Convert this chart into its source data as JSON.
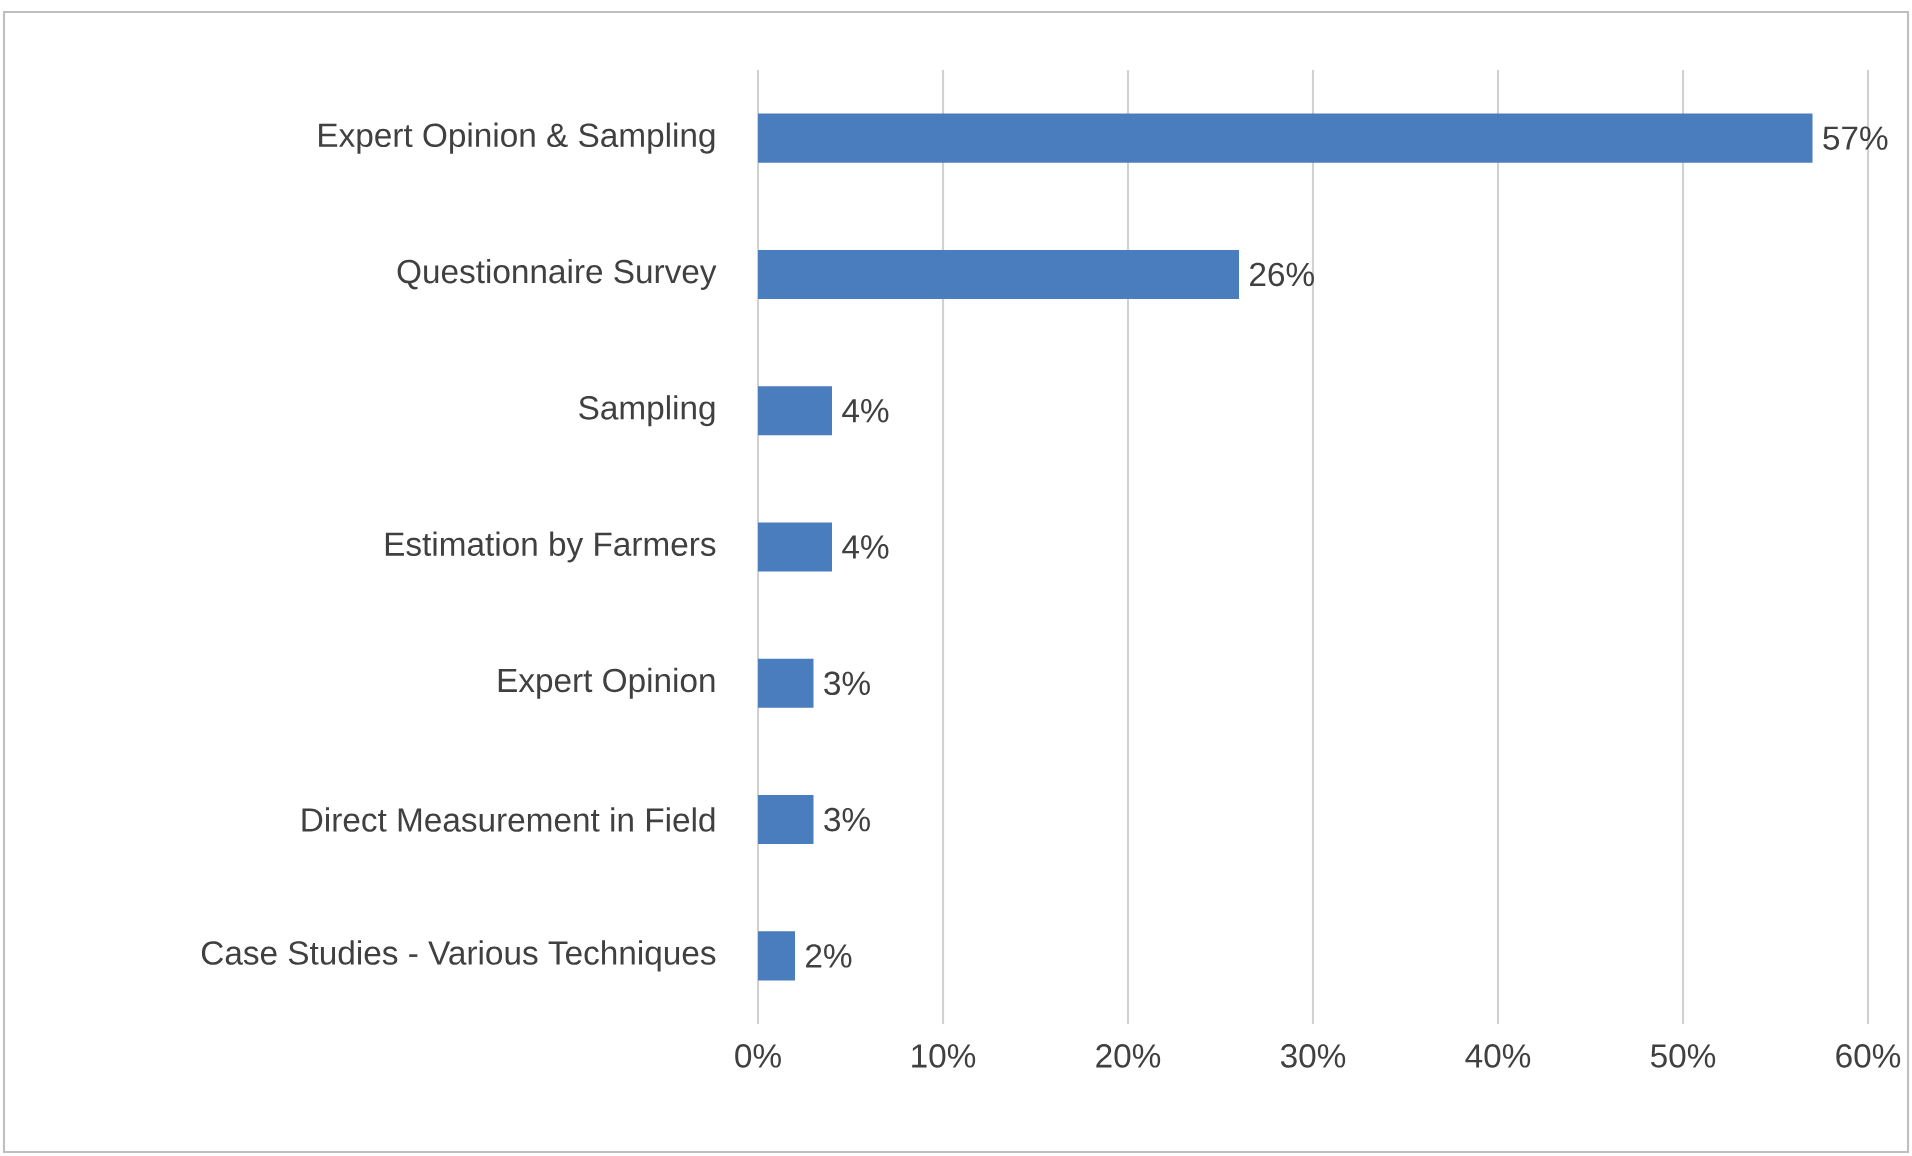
{
  "chart_data": {
    "type": "bar",
    "orientation": "horizontal",
    "categories": [
      "Expert Opinion & Sampling",
      "Questionnaire Survey",
      "Sampling",
      "Estimation by Farmers",
      "Expert Opinion",
      "Direct Measurement in Field",
      "Case Studies - Various Techniques"
    ],
    "values": [
      57,
      26,
      4,
      4,
      3,
      3,
      2
    ],
    "value_labels": [
      "57%",
      "26%",
      "4%",
      "4%",
      "3%",
      "3%",
      "2%"
    ],
    "color": "#4a7dbd",
    "xlim": [
      0,
      60
    ],
    "xticks": [
      {
        "value": 0,
        "label": "0%"
      },
      {
        "value": 10,
        "label": "10%"
      },
      {
        "value": 20,
        "label": "20%"
      },
      {
        "value": 30,
        "label": "30%"
      },
      {
        "value": 40,
        "label": "40%"
      },
      {
        "value": 50,
        "label": "50%"
      },
      {
        "value": 60,
        "label": "60%"
      }
    ],
    "grid": "x"
  }
}
